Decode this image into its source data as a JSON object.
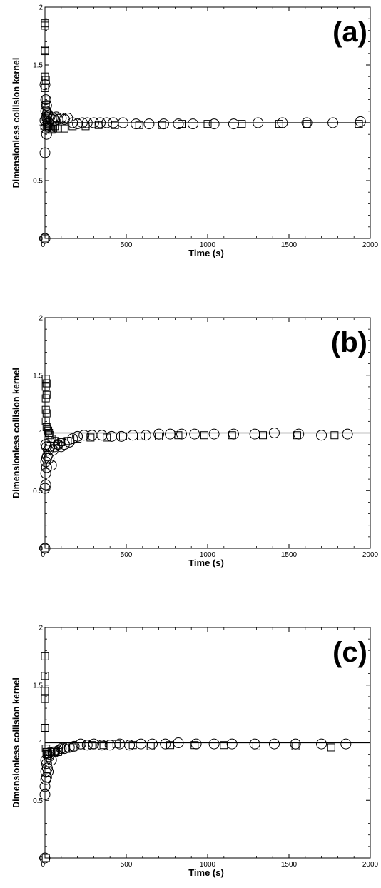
{
  "chart_data": [
    {
      "type": "scatter",
      "panel_label": "(a)",
      "xlabel": "Time (s)",
      "ylabel": "Dimensionless collision kernel",
      "xlim": [
        0,
        2000
      ],
      "ylim": [
        0,
        2
      ],
      "xticks": [
        "0",
        "500",
        "1000",
        "1500",
        "2000"
      ],
      "yticks": [
        "0",
        "0.5",
        "1",
        "1.5",
        "2"
      ],
      "reference_line": 1,
      "grid": false,
      "series": [
        {
          "marker": "square",
          "x": [
            0,
            0,
            0,
            0,
            0,
            0,
            0,
            5,
            5,
            5,
            5,
            10,
            10,
            10,
            15,
            20,
            25,
            30,
            40,
            50,
            60,
            80,
            120,
            170,
            250,
            330,
            430,
            580,
            720,
            840,
            1000,
            1210,
            1440,
            1610,
            1930
          ],
          "y": [
            1.86,
            1.84,
            1.63,
            1.62,
            1.4,
            1.3,
            0.0,
            1.37,
            1.2,
            1.15,
            1.05,
            1.1,
            1.02,
            0.96,
            1.0,
            0.97,
            0.96,
            0.95,
            0.94,
            0.95,
            0.97,
            0.95,
            0.95,
            0.97,
            0.97,
            0.98,
            0.98,
            0.98,
            0.98,
            0.99,
            0.99,
            0.99,
            0.99,
            0.99,
            0.99
          ]
        },
        {
          "marker": "circle",
          "x": [
            0,
            0,
            0,
            0,
            5,
            5,
            5,
            5,
            10,
            10,
            10,
            15,
            20,
            25,
            30,
            40,
            50,
            60,
            70,
            80,
            100,
            120,
            140,
            170,
            200,
            230,
            260,
            300,
            340,
            380,
            420,
            480,
            560,
            640,
            730,
            820,
            910,
            1040,
            1160,
            1310,
            1460,
            1610,
            1770,
            1940
          ],
          "y": [
            0.0,
            0.74,
            1.33,
            1.02,
            1.2,
            1.1,
            0.97,
            0.95,
            1.15,
            1.05,
            0.9,
            1.08,
            1.0,
            1.06,
            1.05,
            1.03,
            1.04,
            1.02,
            1.05,
            1.03,
            1.04,
            1.03,
            1.04,
            1.0,
            0.99,
            1.0,
            1.0,
            1.0,
            1.0,
            1.0,
            1.0,
            1.0,
            0.99,
            0.99,
            0.99,
            0.99,
            0.99,
            0.99,
            0.99,
            1.0,
            1.0,
            1.0,
            1.0,
            1.01
          ]
        }
      ]
    },
    {
      "type": "scatter",
      "panel_label": "(b)",
      "xlabel": "Time (s)",
      "ylabel": "Dimensionless collision kernel",
      "xlim": [
        0,
        2000
      ],
      "ylim": [
        0,
        2
      ],
      "xticks": [
        "0",
        "500",
        "1000",
        "1500",
        "2000"
      ],
      "yticks": [
        "0",
        "0.5",
        "1",
        "1.5",
        "2"
      ],
      "reference_line": 1,
      "grid": false,
      "series": [
        {
          "marker": "square",
          "x": [
            0,
            5,
            5,
            5,
            5,
            5,
            10,
            10,
            10,
            10,
            15,
            20,
            25,
            30,
            40,
            60,
            80,
            100,
            140,
            200,
            280,
            380,
            480,
            590,
            700,
            820,
            980,
            1150,
            1340,
            1550,
            1780
          ],
          "y": [
            0.0,
            1.47,
            1.4,
            1.3,
            1.2,
            1.1,
            1.43,
            1.33,
            1.17,
            1.05,
            1.03,
            1.02,
            1.0,
            0.98,
            0.95,
            0.93,
            0.9,
            0.92,
            0.93,
            0.95,
            0.96,
            0.96,
            0.97,
            0.97,
            0.97,
            0.98,
            0.98,
            0.98,
            0.98,
            0.98,
            0.98
          ]
        },
        {
          "marker": "circle",
          "x": [
            0,
            0,
            5,
            5,
            5,
            5,
            10,
            10,
            10,
            15,
            20,
            25,
            30,
            40,
            50,
            60,
            80,
            100,
            120,
            150,
            170,
            200,
            240,
            290,
            350,
            410,
            470,
            540,
            620,
            700,
            770,
            840,
            920,
            1040,
            1160,
            1290,
            1410,
            1560,
            1700,
            1860
          ],
          "y": [
            0.0,
            0.52,
            0.55,
            0.65,
            0.75,
            0.9,
            0.7,
            0.78,
            0.88,
            0.8,
            0.85,
            0.78,
            0.88,
            0.72,
            0.85,
            0.88,
            0.9,
            0.88,
            0.9,
            0.92,
            0.95,
            0.97,
            0.98,
            0.98,
            0.98,
            0.97,
            0.97,
            0.98,
            0.98,
            0.99,
            0.99,
            0.99,
            0.99,
            0.99,
            0.99,
            0.99,
            1.0,
            0.99,
            0.98,
            0.99
          ]
        }
      ]
    },
    {
      "type": "scatter",
      "panel_label": "(c)",
      "xlabel": "Time (s)",
      "ylabel": "Dimensionless collision kernel",
      "xlim": [
        0,
        2000
      ],
      "ylim": [
        0,
        2
      ],
      "xticks": [
        "0",
        "500",
        "1000",
        "1500",
        "2000"
      ],
      "yticks": [
        "0",
        "0.5",
        "1",
        "1.5",
        "2"
      ],
      "reference_line": 1,
      "grid": false,
      "series": [
        {
          "marker": "square",
          "x": [
            0,
            0,
            0,
            0,
            0,
            5,
            5,
            10,
            10,
            15,
            20,
            30,
            40,
            60,
            80,
            100,
            130,
            170,
            220,
            290,
            360,
            440,
            540,
            650,
            770,
            920,
            1100,
            1300,
            1540,
            1760
          ],
          "y": [
            1.75,
            1.58,
            1.45,
            1.38,
            1.13,
            0.0,
            0.95,
            0.92,
            0.9,
            0.95,
            0.9,
            0.92,
            0.93,
            0.93,
            0.92,
            0.95,
            0.95,
            0.96,
            0.97,
            0.98,
            0.98,
            0.99,
            0.98,
            0.97,
            0.98,
            0.98,
            0.98,
            0.97,
            0.97,
            0.96
          ]
        },
        {
          "marker": "circle",
          "x": [
            0,
            0,
            0,
            5,
            5,
            5,
            10,
            10,
            15,
            20,
            25,
            30,
            40,
            50,
            60,
            80,
            100,
            120,
            150,
            180,
            220,
            260,
            300,
            350,
            400,
            460,
            520,
            590,
            660,
            740,
            820,
            930,
            1040,
            1150,
            1290,
            1410,
            1540,
            1700,
            1850
          ],
          "y": [
            0.0,
            0.55,
            0.62,
            0.68,
            0.75,
            0.85,
            0.7,
            0.82,
            0.78,
            0.75,
            0.88,
            0.9,
            0.85,
            0.92,
            0.92,
            0.93,
            0.95,
            0.95,
            0.96,
            0.97,
            0.99,
            0.98,
            0.99,
            0.98,
            0.98,
            0.99,
            0.98,
            0.99,
            0.99,
            0.99,
            1.0,
            0.99,
            0.99,
            0.99,
            0.99,
            0.99,
            0.99,
            0.99,
            0.99
          ]
        }
      ]
    }
  ]
}
